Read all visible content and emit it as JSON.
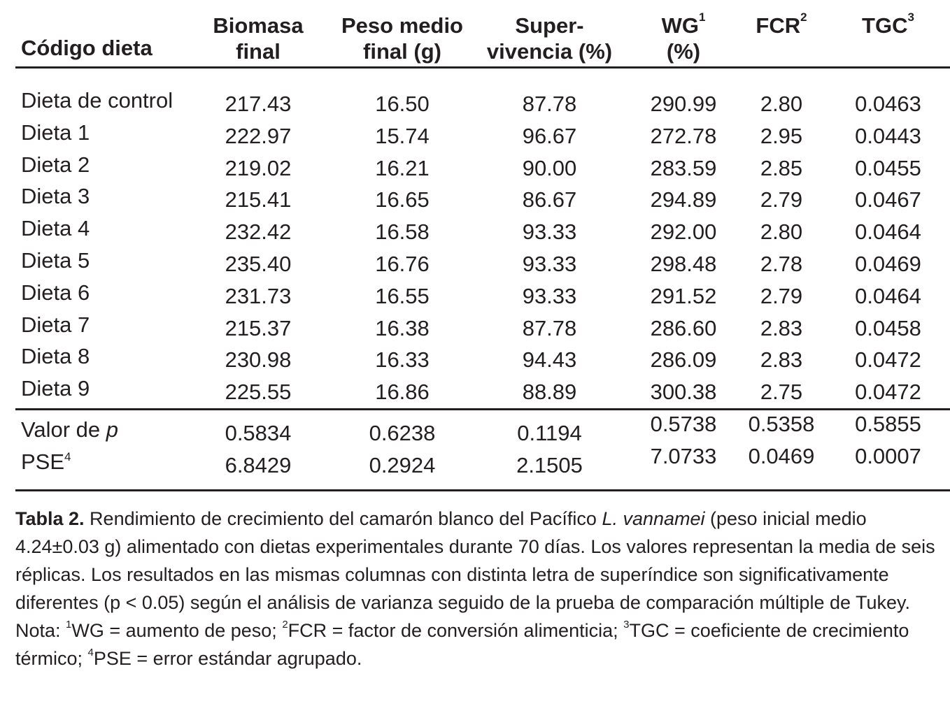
{
  "table": {
    "headers": {
      "code": "Código dieta",
      "biomass": [
        "Biomasa",
        "final"
      ],
      "weight": [
        "Peso medio",
        "final (g)"
      ],
      "survival": [
        "Super-",
        "vivencia (%)"
      ],
      "wg": {
        "label": "WG",
        "sup": "1",
        "line2": "(%)"
      },
      "fcr": {
        "label": "FCR",
        "sup": "2"
      },
      "tgc": {
        "label": "TGC",
        "sup": "3"
      }
    },
    "rows": [
      {
        "label": "Dieta de control",
        "biomass": "217.43",
        "weight": "16.50",
        "survival": "87.78",
        "wg": "290.99",
        "fcr": "2.80",
        "tgc": "0.0463"
      },
      {
        "label": "Dieta 1",
        "biomass": "222.97",
        "weight": "15.74",
        "survival": "96.67",
        "wg": "272.78",
        "fcr": "2.95",
        "tgc": "0.0443"
      },
      {
        "label": "Dieta 2",
        "biomass": "219.02",
        "weight": "16.21",
        "survival": "90.00",
        "wg": "283.59",
        "fcr": "2.85",
        "tgc": "0.0455"
      },
      {
        "label": "Dieta 3",
        "biomass": "215.41",
        "weight": "16.65",
        "survival": "86.67",
        "wg": "294.89",
        "fcr": "2.79",
        "tgc": "0.0467"
      },
      {
        "label": "Dieta 4",
        "biomass": "232.42",
        "weight": "16.58",
        "survival": "93.33",
        "wg": "292.00",
        "fcr": "2.80",
        "tgc": "0.0464"
      },
      {
        "label": "Dieta 5",
        "biomass": "235.40",
        "weight": "16.76",
        "survival": "93.33",
        "wg": "298.48",
        "fcr": "2.78",
        "tgc": "0.0469"
      },
      {
        "label": "Dieta 6",
        "biomass": "231.73",
        "weight": "16.55",
        "survival": "93.33",
        "wg": "291.52",
        "fcr": "2.79",
        "tgc": "0.0464"
      },
      {
        "label": "Dieta 7",
        "biomass": "215.37",
        "weight": "16.38",
        "survival": "87.78",
        "wg": "286.60",
        "fcr": "2.83",
        "tgc": "0.0458"
      },
      {
        "label": "Dieta 8",
        "biomass": "230.98",
        "weight": "16.33",
        "survival": "94.43",
        "wg": "286.09",
        "fcr": "2.83",
        "tgc": "0.0472"
      },
      {
        "label": "Dieta 9",
        "biomass": "225.55",
        "weight": "16.86",
        "survival": "88.89",
        "wg": "300.38",
        "fcr": "2.75",
        "tgc": "0.0472"
      }
    ],
    "stats": [
      {
        "label": "Valor de ",
        "label_italic": "p",
        "biomass": "0.5834",
        "weight": "0.6238",
        "survival": "0.1194",
        "wg": "0.5738",
        "fcr": "0.5358",
        "tgc": "0.5855"
      },
      {
        "label": "PSE",
        "label_sup": "4",
        "biomass": "6.8429",
        "weight": "0.2924",
        "survival": "2.1505",
        "wg": "7.0733",
        "fcr": "0.0469",
        "tgc": "0.0007"
      }
    ]
  },
  "caption": {
    "title": "Tabla 2.",
    "text_a": " Rendimiento de crecimiento del camarón blanco del Pacífico ",
    "species": "L. vannamei",
    "text_b": " (peso inicial medio 4.24±0.03 g) alimentado con dietas experimentales durante 70 días. Los valores representan la media de seis réplicas. Los resultados en las mismas columnas con distinta letra de superíndice son significativamente diferentes (p  < 0.05) según el análisis de varianza seguido de la prueba de comparación múltiple de Tukey.",
    "note_prefix": "Nota: ",
    "note_1_sup": "1",
    "note_1": "WG = aumento de peso; ",
    "note_2_sup": "2",
    "note_2": "FCR = factor de conversión alimenticia; ",
    "note_3_sup": "3",
    "note_3": "TGC = coeficiente de crecimiento térmico; ",
    "note_4_sup": "4",
    "note_4": "PSE = error estándar agrupado."
  }
}
